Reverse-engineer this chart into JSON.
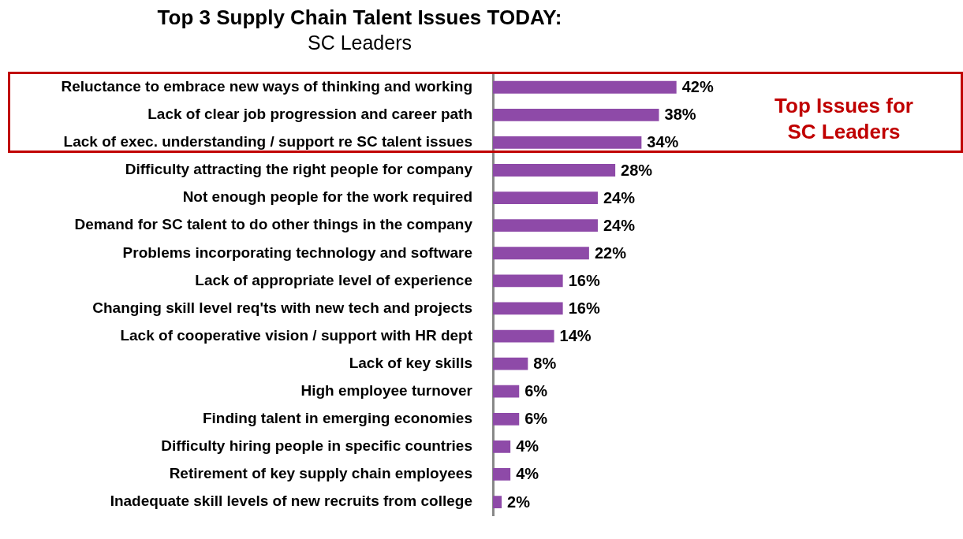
{
  "chart_data": {
    "type": "bar",
    "orientation": "horizontal",
    "title": "Top 3 Supply Chain Talent Issues TODAY:",
    "subtitle": "SC Leaders",
    "categories": [
      "Reluctance to embrace new ways of thinking and working",
      "Lack of clear job progression and career path",
      "Lack of exec. understanding / support re SC talent issues",
      "Difficulty attracting the right people for company",
      "Not enough people for the work required",
      "Demand for SC talent to do other things in the company",
      "Problems incorporating technology and software",
      "Lack of appropriate level of experience",
      "Changing skill level req'ts with new tech and projects",
      "Lack of cooperative vision / support with HR dept",
      "Lack of key skills",
      "High employee turnover",
      "Finding talent in emerging economies",
      "Difficulty hiring people in specific countries",
      "Retirement of key supply chain employees",
      "Inadequate skill levels of new recruits from college"
    ],
    "values": [
      42,
      38,
      34,
      28,
      24,
      24,
      22,
      16,
      16,
      14,
      8,
      6,
      6,
      4,
      4,
      2
    ],
    "value_labels": [
      "42%",
      "38%",
      "34%",
      "28%",
      "24%",
      "24%",
      "22%",
      "16%",
      "16%",
      "14%",
      "8%",
      "6%",
      "6%",
      "4%",
      "4%",
      "2%"
    ],
    "color": "#8e4aa8",
    "tick_labels": "y",
    "annotations": [
      "Top Issues for SC Leaders"
    ]
  }
}
